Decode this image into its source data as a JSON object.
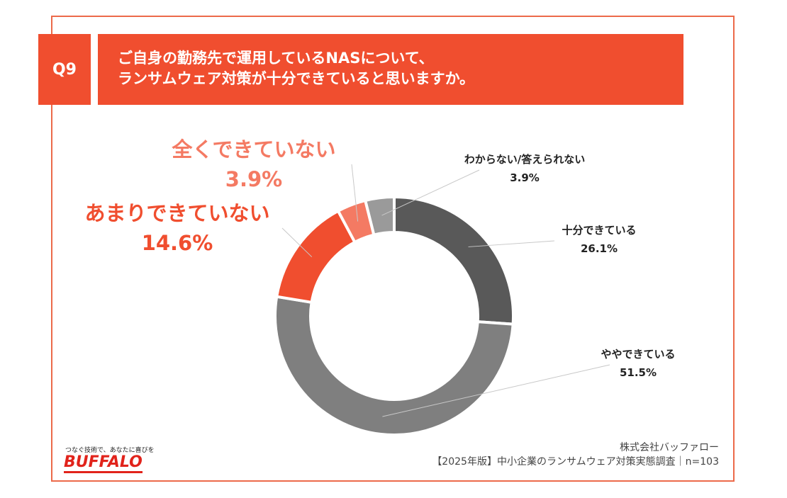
{
  "header": {
    "badge": "Q9",
    "title_line1": "ご自身の勤務先で運用しているNASについて、",
    "title_line2": "ランサムウェア対策が十分できていると思いますか。"
  },
  "chart_data": {
    "type": "pie",
    "donut": true,
    "categories": [
      "十分できている",
      "ややできている",
      "あまりできていない",
      "全くできていない",
      "わからない/答えられない"
    ],
    "values": [
      26.1,
      51.5,
      14.6,
      3.9,
      3.9
    ],
    "value_labels": [
      "26.1%",
      "51.5%",
      "14.6%",
      "3.9%",
      "3.9%"
    ],
    "colors": [
      "#595959",
      "#7f7f7f",
      "#f04e2f",
      "#f47a63",
      "#9a9a9a"
    ],
    "start": "12 o'clock, clockwise"
  },
  "footer": {
    "company": "株式会社バッファロー",
    "source": "【2025年版】中小企業のランサムウェア対策実態調査｜n=103"
  },
  "logo": {
    "tagline": "つなぐ技術で、あなたに喜びを",
    "wordmark": "BUFFALO"
  }
}
